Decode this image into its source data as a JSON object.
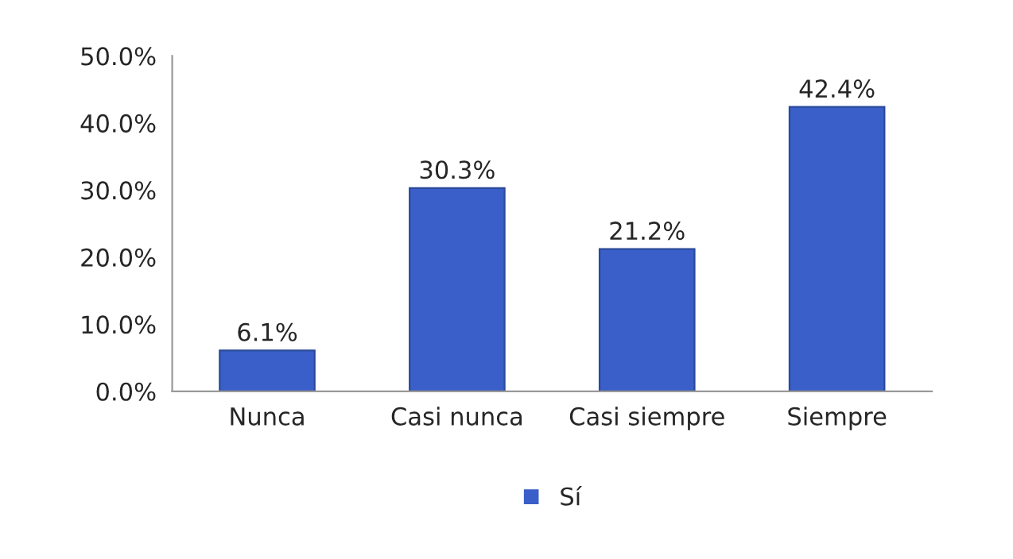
{
  "chart_data": {
    "type": "bar",
    "categories": [
      "Nunca",
      "Casi nunca",
      "Casi siempre",
      "Siempre"
    ],
    "series": [
      {
        "name": "Sí",
        "color": "#3a5fc8",
        "values": [
          6.1,
          30.3,
          21.2,
          42.4
        ]
      }
    ],
    "ylim": [
      0,
      50
    ],
    "yticks": [
      {
        "value": 0,
        "label": "0.0%"
      },
      {
        "value": 10,
        "label": "10.0%"
      },
      {
        "value": 20,
        "label": "20.0%"
      },
      {
        "value": 30,
        "label": "30.0%"
      },
      {
        "value": 40,
        "label": "40.0%"
      },
      {
        "value": 50,
        "label": "50.0%"
      }
    ],
    "value_labels": [
      "6.1%",
      "30.3%",
      "21.2%",
      "42.4%"
    ],
    "grid": false,
    "legend": "bottom"
  }
}
